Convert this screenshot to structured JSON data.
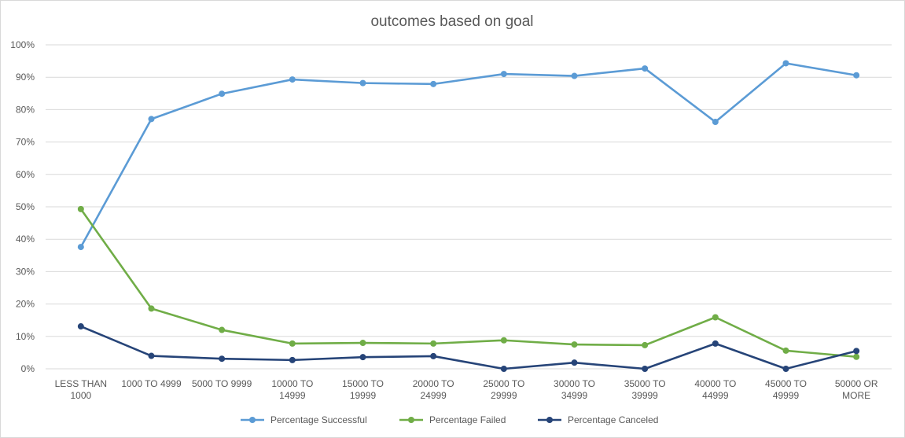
{
  "chart_data": {
    "type": "line",
    "title": "outcomes based on goal",
    "categories": [
      [
        "LESS THAN",
        "1000"
      ],
      [
        "1000 TO 4999"
      ],
      [
        "5000 TO 9999"
      ],
      [
        "10000 TO",
        "14999"
      ],
      [
        "15000 TO",
        "19999"
      ],
      [
        "20000 TO",
        "24999"
      ],
      [
        "25000 TO",
        "29999"
      ],
      [
        "30000 TO",
        "34999"
      ],
      [
        "35000 TO",
        "39999"
      ],
      [
        "40000 TO",
        "44999"
      ],
      [
        "45000 TO",
        "49999"
      ],
      [
        "50000 OR",
        "MORE"
      ]
    ],
    "y_ticks": [
      "0%",
      "10%",
      "20%",
      "30%",
      "40%",
      "50%",
      "60%",
      "70%",
      "80%",
      "90%",
      "100%"
    ],
    "ylim": [
      0,
      1
    ],
    "grid": true,
    "legend_position": "bottom",
    "series": [
      {
        "name": "Percentage Successful",
        "color": "#5b9bd5",
        "values": [
          0.376,
          0.771,
          0.849,
          0.893,
          0.882,
          0.879,
          0.91,
          0.904,
          0.927,
          0.762,
          0.943,
          0.906
        ]
      },
      {
        "name": "Percentage Failed",
        "color": "#70ad47",
        "values": [
          0.493,
          0.186,
          0.12,
          0.078,
          0.08,
          0.078,
          0.088,
          0.075,
          0.073,
          0.159,
          0.056,
          0.037
        ]
      },
      {
        "name": "Percentage Canceled",
        "color": "#264478",
        "values": [
          0.131,
          0.04,
          0.031,
          0.027,
          0.036,
          0.039,
          0.0,
          0.019,
          0.0,
          0.078,
          0.0,
          0.055
        ]
      }
    ]
  }
}
